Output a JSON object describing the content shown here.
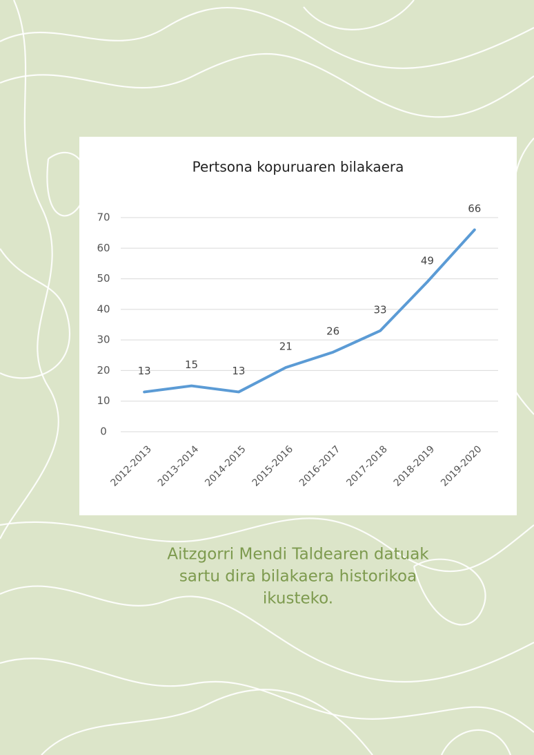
{
  "chart_data": {
    "type": "line",
    "title": "Pertsona kopuruaren bilakaera",
    "categories": [
      "2012-2013",
      "2013-2014",
      "2014-2015",
      "2015-2016",
      "2016-2017",
      "2017-2018",
      "2018-2019",
      "2019-2020"
    ],
    "values": [
      13,
      15,
      13,
      21,
      26,
      33,
      49,
      66
    ],
    "color": "#5b9bd5",
    "ylim": [
      0,
      70
    ],
    "yticks": [
      0,
      10,
      20,
      30,
      40,
      50,
      60,
      70
    ],
    "grid": true
  },
  "caption": [
    "Aitzgorri Mendi Taldearen datuak",
    "sartu dira bilakaera historikoa",
    "ikusteko."
  ]
}
